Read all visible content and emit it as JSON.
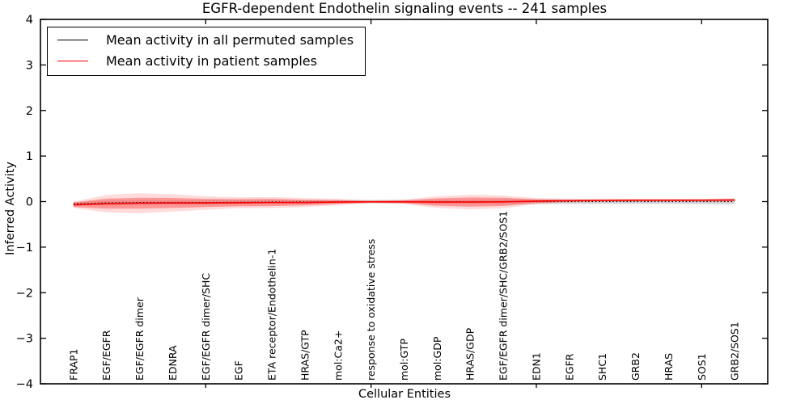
{
  "title": "EGFR-dependent Endothelin signaling events -- 241 samples",
  "xlabel": "Cellular Entities",
  "ylabel": "Inferred Activity",
  "legend": {
    "entries": [
      {
        "label": "Mean activity in all permuted samples",
        "color": "#000000"
      },
      {
        "label": "Mean activity in patient samples",
        "color": "#ff0000"
      }
    ]
  },
  "chart_data": {
    "type": "line",
    "title": "EGFR-dependent Endothelin signaling events -- 241 samples",
    "xlabel": "Cellular Entities",
    "ylabel": "Inferred Activity",
    "ylim": [
      -4,
      4
    ],
    "yticks": [
      4,
      3,
      2,
      1,
      0,
      -1,
      -2,
      -3,
      -4
    ],
    "xticks_positions": [
      5,
      10,
      15,
      20
    ],
    "grid": false,
    "legend_position": "upper left",
    "categories": [
      "FRAP1",
      "EGF/EGFR",
      "EGF/EGFR dimer",
      "EDNRA",
      "EGF/EGFR dimer/SHC",
      "EGF",
      "ETA receptor/Endothelin-1",
      "HRAS/GTP",
      "mol:Ca2+",
      "response to oxidative stress",
      "mol:GTP",
      "mol:GDP",
      "HRAS/GDP",
      "EGF/EGFR dimer/SHC/GRB2/SOS1",
      "EDN1",
      "EGFR",
      "SHC1",
      "GRB2",
      "HRAS",
      "SOS1",
      "GRB2/SOS1"
    ],
    "series": [
      {
        "name": "Mean activity in all permuted samples",
        "color": "#000000",
        "style": "dotted",
        "values": [
          -0.05,
          -0.03,
          -0.02,
          -0.02,
          -0.02,
          -0.015,
          -0.01,
          -0.01,
          -0.005,
          0,
          0,
          -0.005,
          -0.005,
          0,
          0,
          0,
          0,
          0,
          0,
          0,
          0
        ]
      },
      {
        "name": "Mean activity in patient samples",
        "color": "#ff0000",
        "style": "solid",
        "values": [
          -0.07,
          -0.045,
          -0.035,
          -0.03,
          -0.03,
          -0.025,
          -0.02,
          -0.02,
          -0.01,
          -0.005,
          -0.005,
          -0.01,
          -0.01,
          -0.005,
          0.01,
          0.02,
          0.025,
          0.03,
          0.03,
          0.03,
          0.035
        ]
      }
    ],
    "bands": [
      {
        "name": "permuted-samples-range",
        "center_series": 0,
        "color": "#999999",
        "opacity": 0.4,
        "half_widths": [
          0.04,
          0.05,
          0.05,
          0.05,
          0.05,
          0.045,
          0.045,
          0.04,
          0.04,
          0.035,
          0.04,
          0.045,
          0.05,
          0.05,
          0.05,
          0.05,
          0.05,
          0.05,
          0.05,
          0.055,
          0.06
        ]
      },
      {
        "name": "patient-samples-range-outer",
        "center_series": 1,
        "color": "#ff8888",
        "opacity": 0.3,
        "half_widths": [
          0.07,
          0.19,
          0.22,
          0.19,
          0.15,
          0.12,
          0.12,
          0.1,
          0.07,
          0.03,
          0.045,
          0.13,
          0.16,
          0.14,
          0.07,
          0.04,
          0.03,
          0.03,
          0.03,
          0.03,
          0.035
        ]
      },
      {
        "name": "patient-samples-range-inner",
        "center_series": 1,
        "color": "#ff4444",
        "opacity": 0.45,
        "half_widths": [
          0.05,
          0.11,
          0.12,
          0.11,
          0.09,
          0.08,
          0.08,
          0.06,
          0.04,
          0.015,
          0.03,
          0.08,
          0.1,
          0.09,
          0.04,
          0.02,
          0.015,
          0.015,
          0.015,
          0.015,
          0.02
        ]
      }
    ]
  }
}
